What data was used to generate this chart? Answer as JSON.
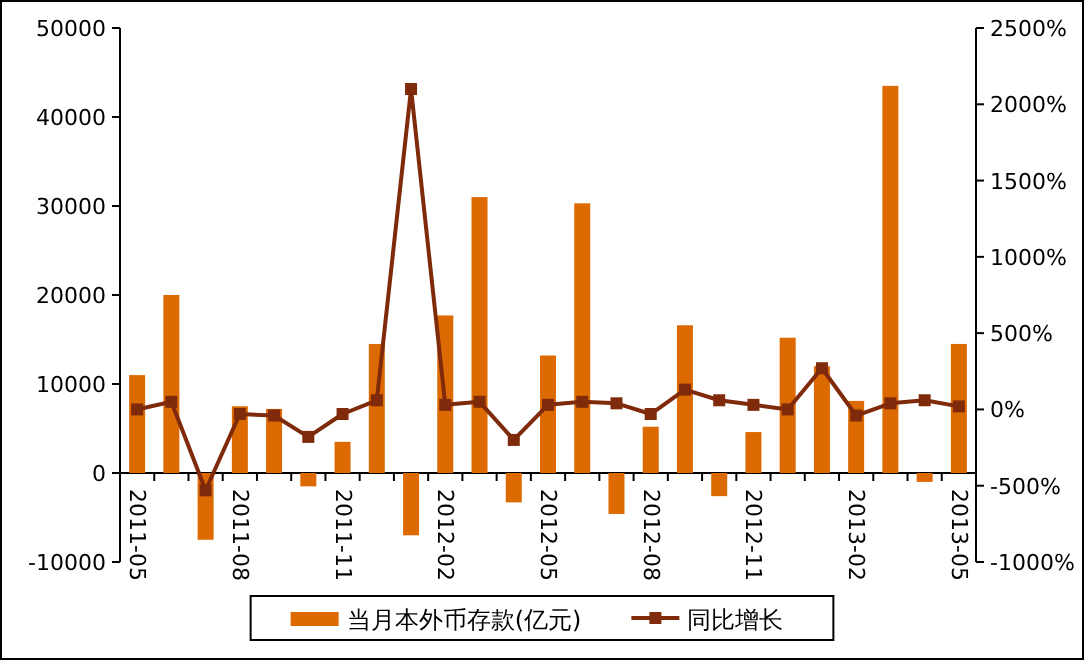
{
  "chart_data": {
    "type": "bar",
    "categories": [
      "2011-05",
      null,
      null,
      "2011-08",
      null,
      null,
      "2011-11",
      null,
      null,
      "2012-02",
      null,
      null,
      "2012-05",
      null,
      null,
      "2012-08",
      null,
      null,
      "2012-11",
      null,
      null,
      "2013-02",
      null,
      null,
      "2013-05"
    ],
    "series": [
      {
        "name": "当月本外币存款(亿元)",
        "color": "#dd6a00",
        "values": [
          11000,
          20000,
          -7500,
          7500,
          7200,
          -1500,
          3500,
          14500,
          -7000,
          17700,
          31000,
          -3300,
          13200,
          30300,
          -4600,
          5200,
          16600,
          -2600,
          4600,
          15200,
          12000,
          8100,
          43500,
          -1000,
          14500
        ]
      },
      {
        "name": "同比增长",
        "type": "line",
        "axis": "y2",
        "color": "#7f2a0a",
        "marker": "square",
        "values": [
          0,
          50,
          -530,
          -30,
          -40,
          -180,
          -30,
          60,
          2100,
          30,
          50,
          -200,
          30,
          50,
          40,
          -30,
          130,
          60,
          30,
          0,
          270,
          -40,
          40,
          60,
          20
        ]
      }
    ],
    "ylim": [
      -10000,
      50000
    ],
    "yticks": [
      -10000,
      0,
      10000,
      20000,
      30000,
      40000,
      50000
    ],
    "y2lim": [
      -1000,
      2500
    ],
    "y2ticks": [
      {
        "value": -1000,
        "label": "-1000%"
      },
      {
        "value": -500,
        "label": "-500%"
      },
      {
        "value": 0,
        "label": "0%"
      },
      {
        "value": 500,
        "label": "500%"
      },
      {
        "value": 1000,
        "label": "1000%"
      },
      {
        "value": 1500,
        "label": "1500%"
      },
      {
        "value": 2000,
        "label": "2000%"
      },
      {
        "value": 2500,
        "label": "2500%"
      }
    ],
    "grid": false,
    "legend": "bottom"
  }
}
